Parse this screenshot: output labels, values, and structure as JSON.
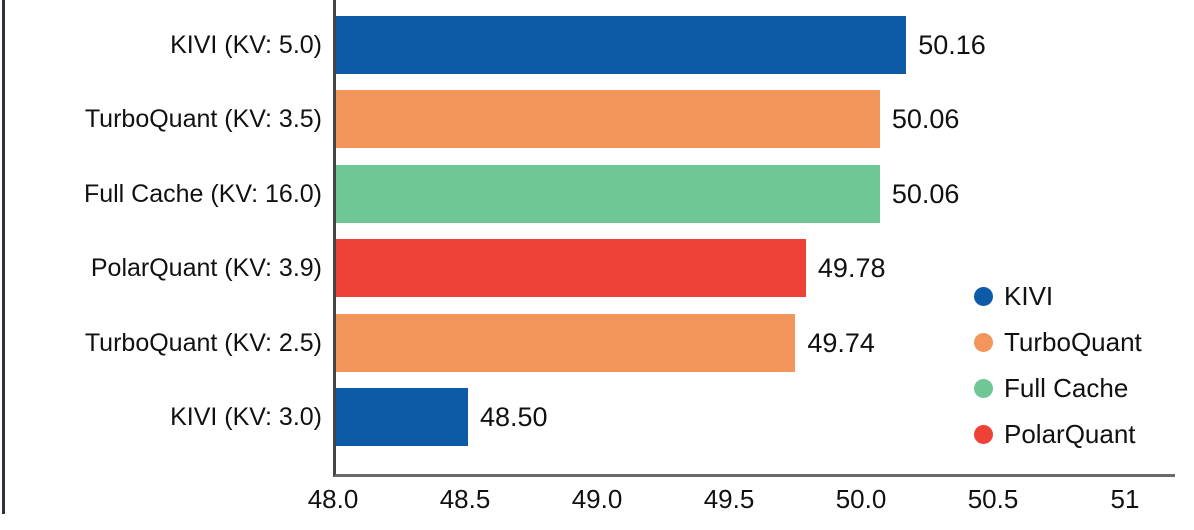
{
  "chart_data": {
    "type": "bar",
    "orientation": "horizontal",
    "title": "",
    "xlabel": "",
    "ylabel": "",
    "grid": false,
    "categories": [
      "KIVI (KV: 5.0)",
      "TurboQuant (KV: 3.5)",
      "Full Cache (KV: 16.0)",
      "PolarQuant (KV: 3.9)",
      "TurboQuant (KV: 2.5)",
      "KIVI (KV: 3.0)"
    ],
    "values": [
      50.16,
      50.06,
      50.06,
      49.78,
      49.74,
      48.5
    ],
    "value_labels": [
      "50.16",
      "50.06",
      "50.06",
      "49.78",
      "49.74",
      "48.50"
    ],
    "bar_series": [
      "KIVI",
      "TurboQuant",
      "Full Cache",
      "PolarQuant",
      "TurboQuant",
      "KIVI"
    ],
    "xlim": [
      48.0,
      51.19
    ],
    "xticks": [
      48.0,
      48.5,
      49.0,
      49.5,
      50.0,
      50.5,
      51
    ],
    "xtick_labels": [
      "48.0",
      "48.5",
      "49.0",
      "49.5",
      "50.0",
      "50.5",
      "51"
    ],
    "legend_position": "lower right",
    "legend": [
      {
        "label": "KIVI",
        "color": "#0d5ba6"
      },
      {
        "label": "TurboQuant",
        "color": "#f2965c"
      },
      {
        "label": "Full Cache",
        "color": "#6ec795"
      },
      {
        "label": "PolarQuant",
        "color": "#ee4137"
      }
    ],
    "series_colors": {
      "KIVI": "#0d5ba6",
      "TurboQuant": "#f2965c",
      "Full Cache": "#6ec795",
      "PolarQuant": "#ee4137"
    }
  },
  "colors": {
    "axis": "#555555",
    "text": "#111111",
    "figure_left_border": "#32323e",
    "background": "#ffffff"
  }
}
